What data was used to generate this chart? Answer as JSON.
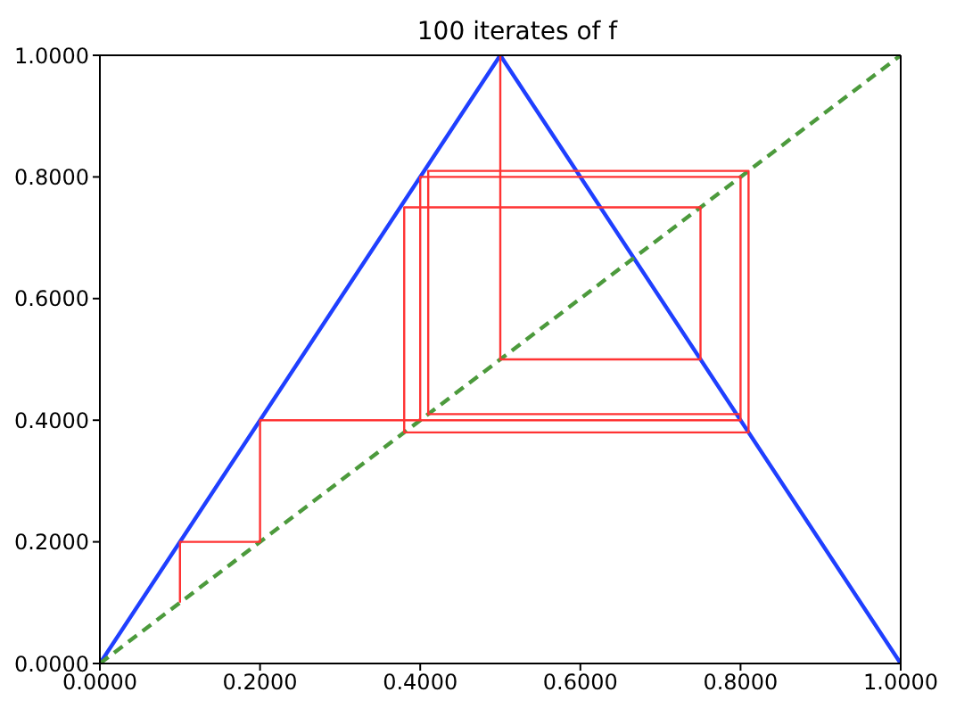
{
  "chart_data": {
    "type": "line",
    "title": "100 iterates of f",
    "xlim": [
      0,
      1
    ],
    "ylim": [
      0,
      1
    ],
    "xticks": [
      {
        "value": 0,
        "label": "0.0000"
      },
      {
        "value": 0.2,
        "label": "0.2000"
      },
      {
        "value": 0.4,
        "label": "0.4000"
      },
      {
        "value": 0.6,
        "label": "0.6000"
      },
      {
        "value": 0.8,
        "label": "0.8000"
      },
      {
        "value": 1,
        "label": "1.0000"
      }
    ],
    "yticks": [
      {
        "value": 0,
        "label": "0.0000"
      },
      {
        "value": 0.2,
        "label": "0.2000"
      },
      {
        "value": 0.4,
        "label": "0.4000"
      },
      {
        "value": 0.6,
        "label": "0.6000"
      },
      {
        "value": 0.8,
        "label": "0.8000"
      },
      {
        "value": 1,
        "label": "1.0000"
      }
    ],
    "marker": "none",
    "series": [
      {
        "color": "#1f3fff",
        "line_style": "solid",
        "x": [
          0,
          0.5,
          1
        ],
        "values": [
          0,
          1,
          0
        ]
      },
      {
        "color": "#4c9a3c",
        "line_style": "dashed",
        "x": [
          0,
          1
        ],
        "values": [
          0,
          1
        ]
      },
      {
        "color": "#ff3333",
        "line_style": "solid",
        "x": [
          0.1,
          0.1,
          0.2,
          0.2,
          0.4,
          0.4,
          0.8,
          0.8,
          0.4,
          0.4,
          0.8,
          0.8,
          0.4,
          0.4,
          0.8,
          0.8,
          0.41,
          0.41,
          0.81,
          0.81,
          0.38,
          0.38,
          0.75,
          0.75,
          0.5,
          0.5
        ],
        "values": [
          0.1,
          0.2,
          0.2,
          0.4,
          0.4,
          0.8,
          0.8,
          0.4,
          0.4,
          0.8,
          0.8,
          0.4,
          0.4,
          0.8,
          0.8,
          0.41,
          0.41,
          0.81,
          0.81,
          0.38,
          0.38,
          0.75,
          0.75,
          0.5,
          0.5,
          1
        ]
      }
    ]
  }
}
